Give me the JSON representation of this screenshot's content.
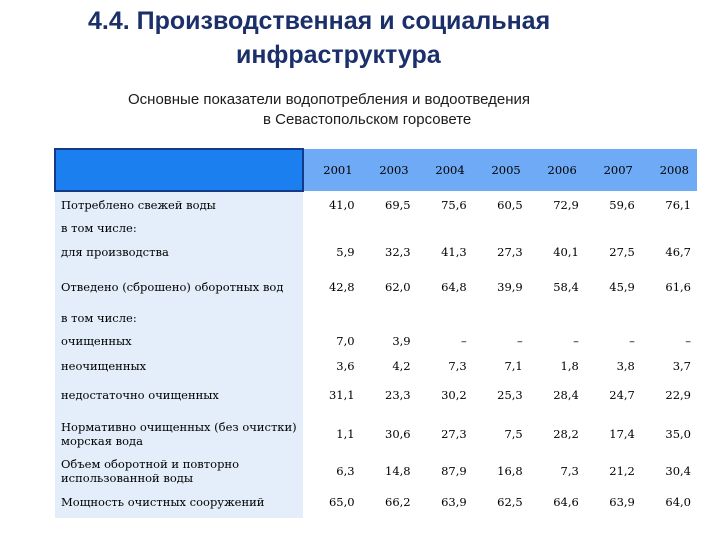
{
  "slide": {
    "title_line1": "4.4. Производственная и социальная",
    "title_line2": "инфраструктура",
    "subtitle_line1": "Основные показатели водопотребления и водоотведения",
    "subtitle_line2": "в Севастопольском горсовете"
  },
  "table": {
    "years": [
      "2001",
      "2003",
      "2004",
      "2005",
      "2006",
      "2007",
      "2008"
    ],
    "rows": [
      {
        "label": "Потреблено свежей воды",
        "values": [
          "41,0",
          "69,5",
          "75,6",
          "60,5",
          "72,9",
          "59,6",
          "76,1"
        ]
      },
      {
        "label": "в том числе:",
        "values": []
      },
      {
        "label": "для производства",
        "values": [
          "5,9",
          "32,3",
          "41,3",
          "27,3",
          "40,1",
          "27,5",
          "46,7"
        ]
      },
      {
        "label": "Отведено (сброшено) оборотных вод",
        "values": [
          "42,8",
          "62,0",
          "64,8",
          "39,9",
          "58,4",
          "45,9",
          "61,6"
        ]
      },
      {
        "label": "в том числе:",
        "values": []
      },
      {
        "label": "очищенных",
        "values": [
          "7,0",
          "3,9",
          "–",
          "–",
          "–",
          "–",
          "–"
        ]
      },
      {
        "label": "неочищенных",
        "values": [
          "3,6",
          "4,2",
          "7,3",
          "7,1",
          "1,8",
          "3,8",
          "3,7"
        ]
      },
      {
        "label": "недостаточно очищенных",
        "values": [
          "31,1",
          "23,3",
          "30,2",
          "25,3",
          "28,4",
          "24,7",
          "22,9"
        ]
      },
      {
        "label": "Нормативно очищенных (без очистки) морская вода",
        "values": [
          "1,1",
          "30,6",
          "27,3",
          "7,5",
          "28,2",
          "17,4",
          "35,0"
        ]
      },
      {
        "label": "Объем оборотной и повторно использованной воды",
        "values": [
          "6,3",
          "14,8",
          "87,9",
          "16,8",
          "7,3",
          "21,2",
          "30,4"
        ]
      },
      {
        "label": "Мощность очистных сооружений",
        "values": [
          "65,0",
          "66,2",
          "63,9",
          "62,5",
          "64,6",
          "63,9",
          "64,0"
        ]
      }
    ]
  }
}
